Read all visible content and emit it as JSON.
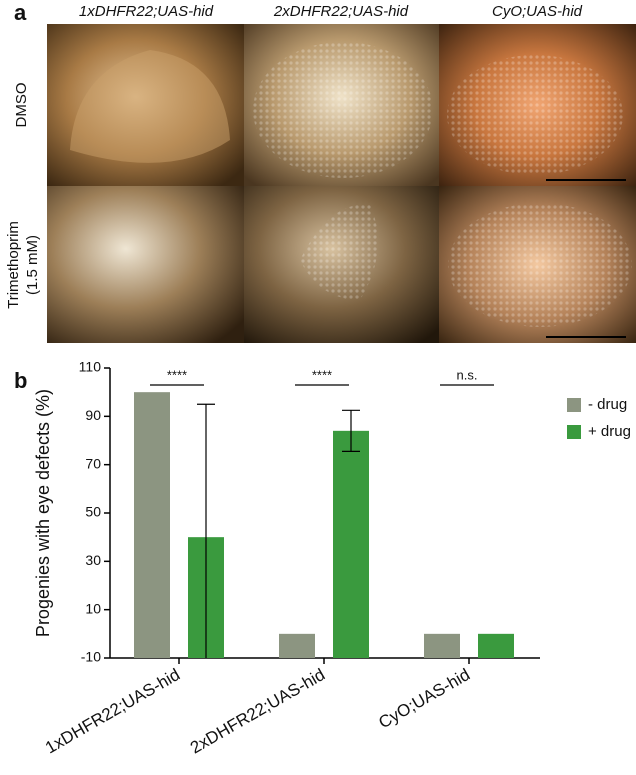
{
  "panel_a": {
    "panel_label": "a",
    "columns": [
      "1xDHFR22;UAS-hid",
      "2xDHFR22;UAS-hid",
      "CyO;UAS-hid"
    ],
    "rows": [
      {
        "lines": [
          "DMSO"
        ]
      },
      {
        "lines": [
          "Trimethoprim",
          "(1.5 mM)"
        ]
      }
    ]
  },
  "chart_data": {
    "type": "bar",
    "panel_label": "b",
    "y_label": "Progenies with eye defects (%)",
    "categories": [
      "1xDHFR22;UAS-hid",
      "2xDHFR22;UAS-hid",
      "CyO;UAS-hid"
    ],
    "series": [
      {
        "name": "- drug",
        "color": "#8c9581",
        "values": [
          100,
          0,
          0
        ]
      },
      {
        "name": "+ drug",
        "color": "#3a9a3e",
        "values": [
          40,
          84,
          0
        ],
        "errors": [
          55,
          8.5,
          null
        ]
      }
    ],
    "significance": [
      "****",
      "****",
      "n.s."
    ],
    "ylim": [
      -10,
      110
    ],
    "yticks": [
      -10,
      10,
      30,
      50,
      70,
      90,
      110
    ],
    "grid": false,
    "legend": "top-right"
  }
}
